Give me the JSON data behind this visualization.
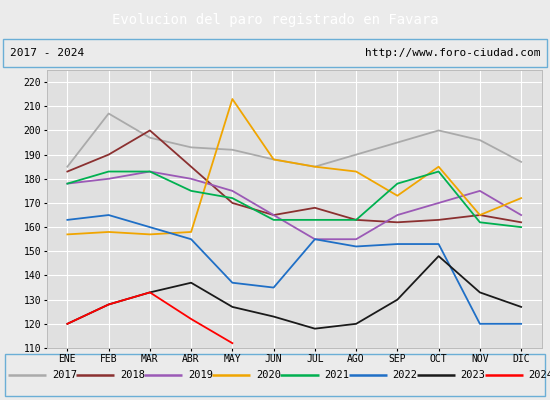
{
  "title": "Evolucion del paro registrado en Favara",
  "title_color": "#ffffff",
  "title_bg_color": "#5b9bd5",
  "subtitle_left": "2017 - 2024",
  "subtitle_right": "http://www.foro-ciudad.com",
  "months": [
    "ENE",
    "FEB",
    "MAR",
    "ABR",
    "MAY",
    "JUN",
    "JUL",
    "AGO",
    "SEP",
    "OCT",
    "NOV",
    "DIC"
  ],
  "ylim": [
    110,
    225
  ],
  "yticks": [
    110,
    120,
    130,
    140,
    150,
    160,
    170,
    180,
    190,
    200,
    210,
    220
  ],
  "series": {
    "2017": {
      "color": "#aaaaaa",
      "data": [
        185,
        207,
        197,
        193,
        192,
        188,
        185,
        190,
        195,
        200,
        196,
        187
      ]
    },
    "2018": {
      "color": "#8b3030",
      "data": [
        183,
        190,
        200,
        185,
        170,
        165,
        168,
        163,
        162,
        163,
        165,
        162
      ]
    },
    "2019": {
      "color": "#9b59b6",
      "data": [
        178,
        180,
        183,
        180,
        175,
        165,
        155,
        155,
        165,
        170,
        175,
        165
      ]
    },
    "2020": {
      "color": "#f0a500",
      "data": [
        157,
        158,
        157,
        158,
        213,
        188,
        185,
        183,
        173,
        185,
        165,
        172
      ]
    },
    "2021": {
      "color": "#00b050",
      "data": [
        178,
        183,
        183,
        175,
        172,
        163,
        163,
        163,
        178,
        183,
        162,
        160
      ]
    },
    "2022": {
      "color": "#1f6fc6",
      "data": [
        163,
        165,
        160,
        155,
        137,
        135,
        155,
        152,
        153,
        153,
        120,
        120
      ]
    },
    "2023": {
      "color": "#1a1a1a",
      "data": [
        120,
        128,
        133,
        137,
        127,
        123,
        118,
        120,
        130,
        148,
        133,
        127
      ]
    },
    "2024": {
      "color": "#ff0000",
      "data": [
        120,
        128,
        133,
        122,
        112,
        null,
        null,
        null,
        null,
        null,
        null,
        null
      ]
    }
  },
  "bg_color": "#ebebeb",
  "plot_bg_color": "#e0e0e0",
  "grid_color": "#ffffff",
  "border_color": "#6baed6",
  "legend_border_color": "#6baed6"
}
